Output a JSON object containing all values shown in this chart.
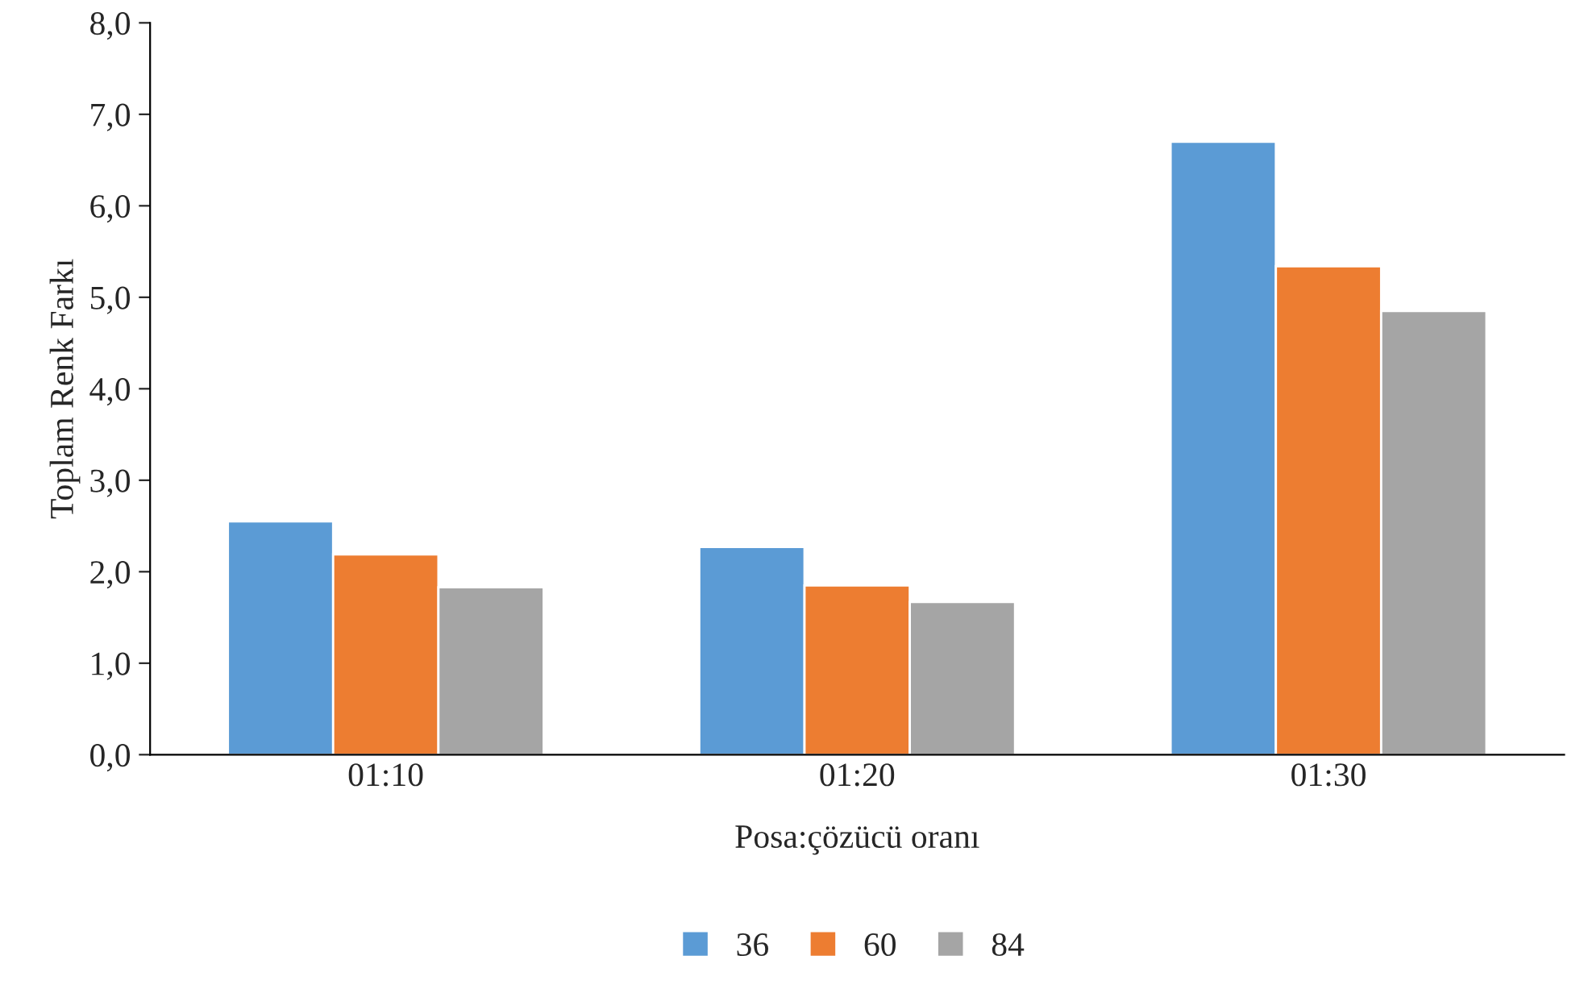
{
  "chart_data": {
    "type": "bar",
    "xlabel": "Posa:çözücü oranı",
    "ylabel": "Toplam Renk Farkı",
    "categories": [
      "01:10",
      "01:20",
      "01:30"
    ],
    "series": [
      {
        "name": "36",
        "color": "#5b9bd5",
        "values": [
          2.55,
          2.27,
          6.7
        ]
      },
      {
        "name": "60",
        "color": "#ed7d31",
        "values": [
          2.19,
          1.85,
          5.34
        ]
      },
      {
        "name": "84",
        "color": "#a5a5a5",
        "values": [
          1.83,
          1.67,
          4.85
        ]
      }
    ],
    "ylim": [
      0,
      8
    ],
    "yticks": [
      {
        "value": 0,
        "label": "0,0"
      },
      {
        "value": 1,
        "label": "1,0"
      },
      {
        "value": 2,
        "label": "2,0"
      },
      {
        "value": 3,
        "label": "3,0"
      },
      {
        "value": 4,
        "label": "4,0"
      },
      {
        "value": 5,
        "label": "5,0"
      },
      {
        "value": 6,
        "label": "6,0"
      },
      {
        "value": 7,
        "label": "7,0"
      },
      {
        "value": 8,
        "label": "8,0"
      }
    ],
    "grid": false,
    "legend": "bottom"
  }
}
